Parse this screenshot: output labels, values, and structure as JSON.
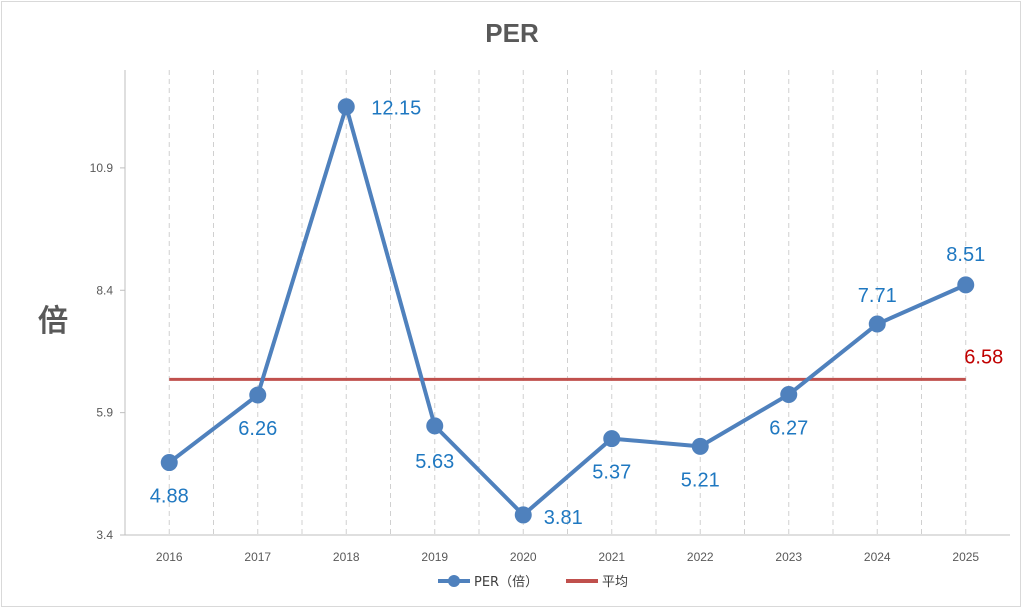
{
  "chart_data": {
    "type": "line",
    "title": "PER",
    "xlabel": "",
    "ylabel": "倍",
    "categories": [
      "2016",
      "2017",
      "2018",
      "2019",
      "2020",
      "2021",
      "2022",
      "2023",
      "2024",
      "2025"
    ],
    "series": [
      {
        "name": "PER（倍）",
        "color": "#4f81bd",
        "values": [
          4.88,
          6.26,
          12.15,
          5.63,
          3.81,
          5.37,
          5.21,
          6.27,
          7.71,
          8.51
        ],
        "labels": [
          "4.88",
          "6.26",
          "12.15",
          "5.63",
          "3.81",
          "5.37",
          "5.21",
          "6.27",
          "7.71",
          "8.51"
        ]
      },
      {
        "name": "平均",
        "color": "#c0504d",
        "values": [
          6.58,
          6.58,
          6.58,
          6.58,
          6.58,
          6.58,
          6.58,
          6.58,
          6.58,
          6.58
        ],
        "label": "6.58"
      }
    ],
    "y_ticks": [
      "3.4",
      "5.9",
      "8.4",
      "10.9"
    ],
    "ylim": [
      3.4,
      12.9
    ],
    "grid": "vertical dashed",
    "legend": "bottom-center"
  }
}
